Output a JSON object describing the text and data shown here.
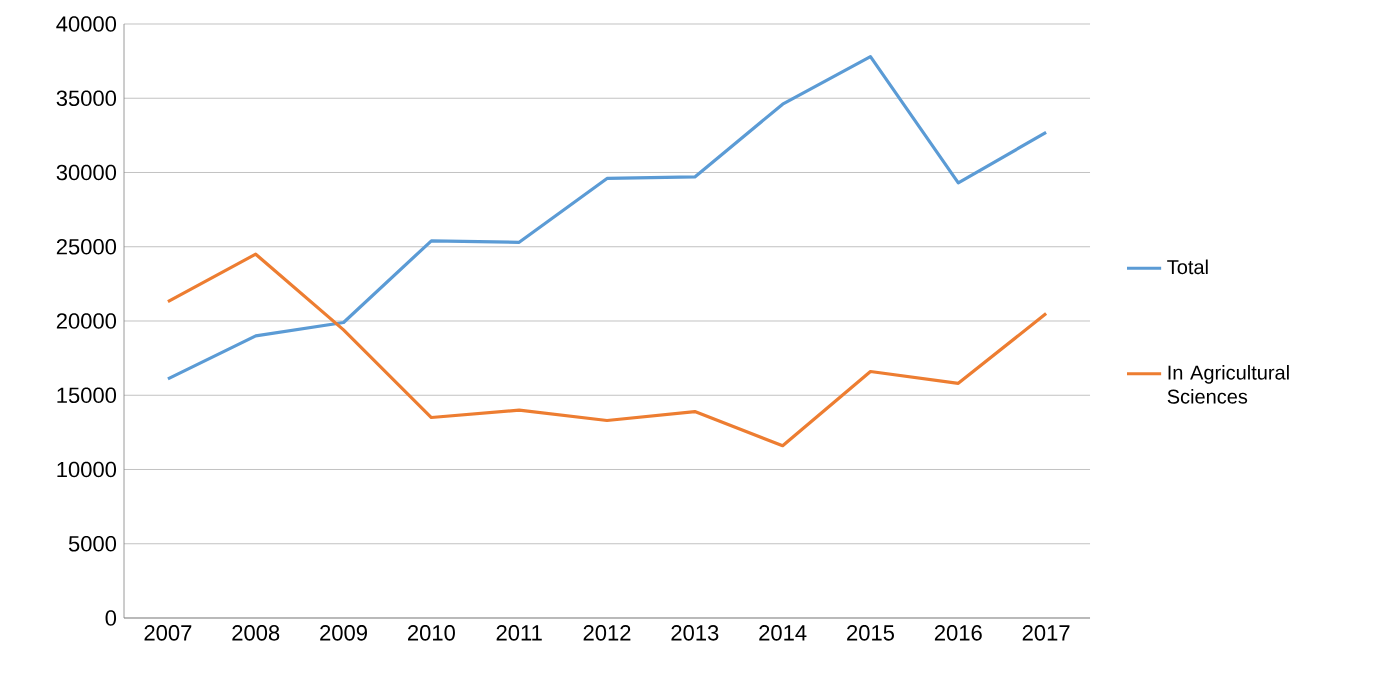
{
  "chart_data": {
    "type": "line",
    "categories": [
      "2007",
      "2008",
      "2009",
      "2010",
      "2011",
      "2012",
      "2013",
      "2014",
      "2015",
      "2016",
      "2017"
    ],
    "series": [
      {
        "name": "Total",
        "color": "#5b9bd5",
        "values": [
          16100,
          19000,
          19900,
          25400,
          25300,
          29600,
          29700,
          34600,
          37800,
          29300,
          32700
        ]
      },
      {
        "name": "In Agricultural Sciences",
        "color": "#ed7d31",
        "values": [
          21300,
          24500,
          19400,
          13500,
          14000,
          13300,
          13900,
          11600,
          16600,
          15800,
          20500
        ]
      }
    ],
    "ylim": [
      0,
      40000
    ],
    "yticks": [
      0,
      5000,
      10000,
      15000,
      20000,
      25000,
      30000,
      35000,
      40000
    ],
    "grid": "y",
    "legend": "right",
    "marker": "none",
    "line_style": "solid"
  }
}
